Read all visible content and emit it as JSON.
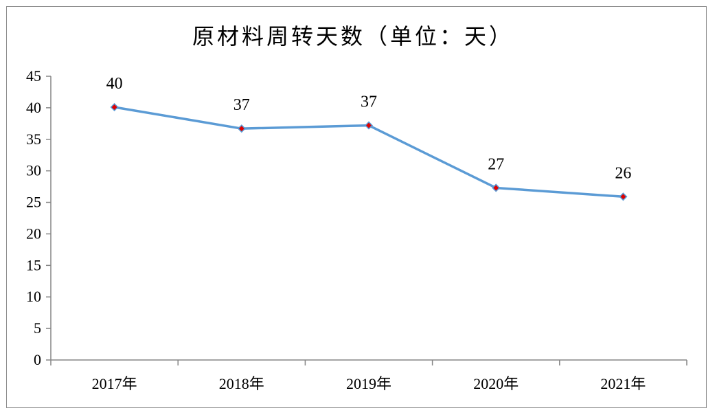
{
  "chart_data": {
    "type": "line",
    "title": "原材料周转天数（单位：天）",
    "categories": [
      "2017年",
      "2018年",
      "2019年",
      "2020年",
      "2021年"
    ],
    "series": [
      {
        "values": [
          40.1,
          36.7,
          37.2,
          27.3,
          25.9
        ],
        "labels": [
          "40",
          "37",
          "37",
          "27",
          "26"
        ]
      }
    ],
    "xlabel": "",
    "ylabel": "",
    "ylim": [
      0,
      45
    ],
    "yticks": [
      "0",
      "5",
      "10",
      "15",
      "20",
      "25",
      "30",
      "35",
      "40",
      "45"
    ],
    "grid": false,
    "legend": "none",
    "colors": {
      "line": "#5b9bd5",
      "marker": "#e00000",
      "axis": "#868686"
    }
  }
}
